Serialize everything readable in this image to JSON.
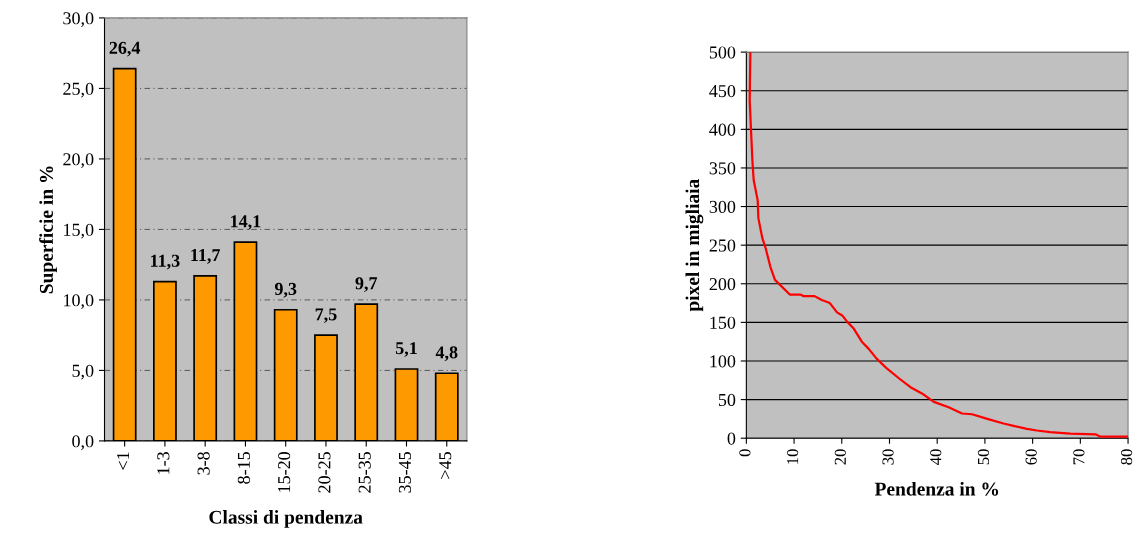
{
  "chart_data": [
    {
      "type": "bar",
      "xlabel": "Classi di pendenza",
      "ylabel": "Superficie in %",
      "categories": [
        "<1",
        "1-3",
        "3-8",
        "8-15",
        "15-20",
        "20-25",
        "25-35",
        "35-45",
        ">45"
      ],
      "values": [
        26.4,
        11.3,
        11.7,
        14.1,
        9.3,
        7.5,
        9.7,
        5.1,
        4.8
      ],
      "value_labels": [
        "26,4",
        "11,3",
        "11,7",
        "14,1",
        "9,3",
        "7,5",
        "9,7",
        "5,1",
        "4,8"
      ],
      "color": "#ff9900",
      "ylim": [
        0,
        30
      ],
      "yticks": [
        {
          "value": 0,
          "label": "0,0"
        },
        {
          "value": 5,
          "label": "5,0"
        },
        {
          "value": 10,
          "label": "10,0"
        },
        {
          "value": 15,
          "label": "15,0"
        },
        {
          "value": 20,
          "label": "20,0"
        },
        {
          "value": 25,
          "label": "25,0"
        },
        {
          "value": 30,
          "label": "30,0"
        }
      ],
      "grid": "y",
      "legend": false
    },
    {
      "type": "line",
      "xlabel": "Pendenza in %",
      "ylabel": "pixel in migliaia",
      "color": "#ff0000",
      "marker": "none",
      "line_style": "solid",
      "x": [
        0.84,
        0.7,
        1.26,
        1.54,
        2.38,
        2.52,
        3.35,
        4.05,
        5.03,
        6.0,
        9.1,
        11.3,
        12.0,
        14.3,
        15.8,
        17.5,
        19.0,
        20.1,
        21.1,
        22.5,
        24.2,
        25.6,
        27.3,
        29.5,
        32.1,
        34.4,
        36.8,
        39.3,
        42.4,
        45.2,
        47.3,
        50.5,
        53.9,
        56.0,
        58.8,
        60.9,
        63.7,
        67.9,
        73.2,
        74.2,
        80
      ],
      "values": [
        500,
        438,
        360,
        334,
        308,
        285,
        259,
        246,
        222,
        205,
        186,
        186,
        184,
        184,
        179,
        175,
        163,
        159,
        151,
        142,
        125,
        116,
        103,
        90,
        77,
        66,
        58,
        47,
        40,
        32,
        31,
        25,
        19,
        16,
        12,
        10,
        8,
        6,
        5,
        2,
        2
      ],
      "xlim": [
        0,
        80
      ],
      "xticks": [
        0,
        10,
        20,
        30,
        40,
        50,
        60,
        70,
        80
      ],
      "ylim": [
        0,
        500
      ],
      "yticks": [
        0,
        50,
        100,
        150,
        200,
        250,
        300,
        350,
        400,
        450,
        500
      ],
      "grid": "y",
      "legend": false
    }
  ]
}
